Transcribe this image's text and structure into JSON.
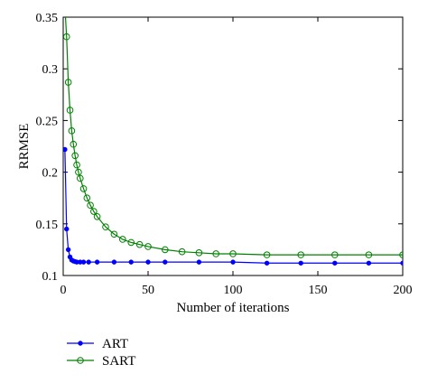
{
  "chart_data": {
    "type": "line",
    "title": "",
    "xlabel": "Number of iterations",
    "ylabel": "RRMSE",
    "xlim": [
      0,
      200
    ],
    "ylim": [
      0.1,
      0.35
    ],
    "xticks": [
      0,
      50,
      100,
      150,
      200
    ],
    "yticks": [
      0.1,
      0.15,
      0.2,
      0.25,
      0.3,
      0.35
    ],
    "xtick_labels": [
      "0",
      "50",
      "100",
      "150",
      "200"
    ],
    "ytick_labels": [
      "0.1",
      "0.15",
      "0.2",
      "0.25",
      "0.3",
      "0.35"
    ],
    "grid": false,
    "legend_position": "below-left",
    "series": [
      {
        "name": "ART",
        "color": "#0000ff",
        "marker": "filled-circle",
        "x": [
          1,
          2,
          3,
          4,
          5,
          6,
          7,
          8,
          10,
          12,
          15,
          20,
          30,
          40,
          50,
          60,
          80,
          100,
          120,
          140,
          160,
          180,
          200
        ],
        "y": [
          0.222,
          0.145,
          0.125,
          0.118,
          0.115,
          0.114,
          0.1135,
          0.113,
          0.113,
          0.113,
          0.113,
          0.113,
          0.113,
          0.113,
          0.113,
          0.113,
          0.113,
          0.113,
          0.112,
          0.112,
          0.112,
          0.112,
          0.112
        ]
      },
      {
        "name": "SART",
        "color": "#008000",
        "marker": "open-circle",
        "x": [
          1,
          2,
          3,
          4,
          5,
          6,
          7,
          8,
          9,
          10,
          12,
          14,
          16,
          18,
          20,
          25,
          30,
          35,
          40,
          45,
          50,
          60,
          70,
          80,
          90,
          100,
          120,
          140,
          160,
          180,
          200
        ],
        "y": [
          0.36,
          0.331,
          0.287,
          0.26,
          0.24,
          0.227,
          0.216,
          0.207,
          0.2,
          0.194,
          0.184,
          0.175,
          0.168,
          0.162,
          0.157,
          0.147,
          0.14,
          0.135,
          0.132,
          0.13,
          0.128,
          0.125,
          0.123,
          0.122,
          0.121,
          0.121,
          0.12,
          0.12,
          0.12,
          0.12,
          0.12
        ]
      }
    ]
  }
}
